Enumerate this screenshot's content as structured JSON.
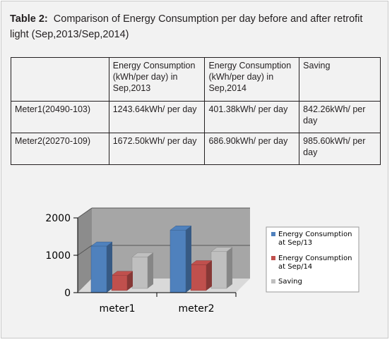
{
  "caption": {
    "label": "Table 2:",
    "text": "Comparison of Energy Consumption per day before and after retrofit light (Sep,2013/Sep,2014)"
  },
  "table": {
    "headers": [
      "",
      "Energy Consumption (kWh/per day) in Sep,2013",
      "Energy Consumption (kWh/per day) in Sep,2014",
      "Saving"
    ],
    "rows": [
      [
        "Meter1(20490-103)",
        "1243.64kWh/ per day",
        "401.38kWh/ per day",
        "842.26kWh/ per day"
      ],
      [
        "Meter2(20270-109)",
        "1672.50kWh/ per day",
        "686.90kWh/ per day",
        "985.60kWh/ per day"
      ]
    ]
  },
  "chart_data": {
    "type": "bar",
    "title": "",
    "xlabel": "",
    "ylabel": "",
    "categories": [
      "meter1",
      "meter2"
    ],
    "series": [
      {
        "name": "Energy Consumption at Sep/13",
        "values": [
          1243.64,
          1672.5
        ],
        "color": "#4f81bd"
      },
      {
        "name": "Energy Consumption at Sep/14",
        "values": [
          401.38,
          686.9
        ],
        "color": "#c0504d"
      },
      {
        "name": "Saving",
        "values": [
          842.26,
          985.6
        ],
        "color": "#bfbfbf"
      }
    ],
    "yticks": [
      "0",
      "1000",
      "2000"
    ],
    "ylim": [
      0,
      2000
    ],
    "grid": true,
    "legend_position": "right",
    "style": "3d"
  }
}
